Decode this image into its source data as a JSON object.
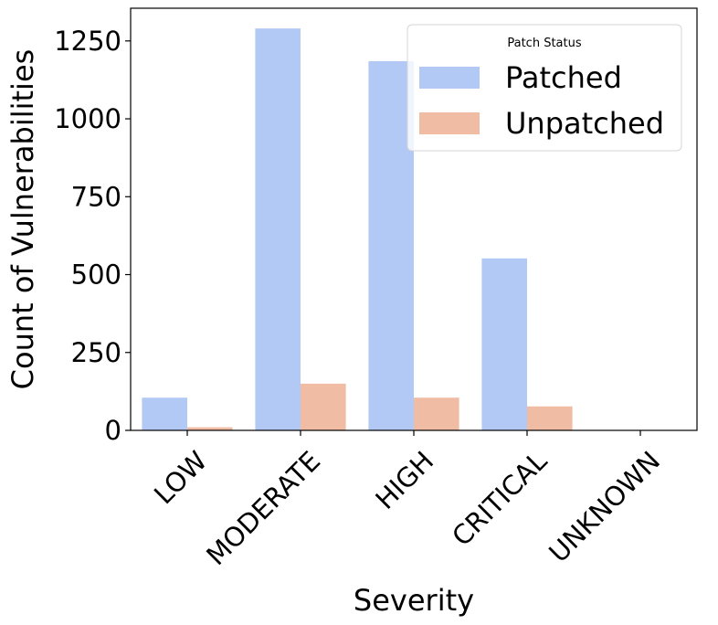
{
  "chart_data": {
    "type": "bar",
    "categories": [
      "LOW",
      "MODERATE",
      "HIGH",
      "CRITICAL",
      "UNKNOWN"
    ],
    "series": [
      {
        "name": "Patched",
        "color": "#b3c9f5",
        "values": [
          105,
          1290,
          1185,
          552,
          0
        ]
      },
      {
        "name": "Unpatched",
        "color": "#f0bca4",
        "values": [
          10,
          150,
          105,
          77,
          0
        ]
      }
    ],
    "title": "",
    "xlabel": "Severity",
    "ylabel": "Count of Vulnerabilities",
    "ylim": [
      0,
      1355
    ],
    "yticks": [
      0,
      250,
      500,
      750,
      1000,
      1250
    ],
    "legend": {
      "title": "Patch Status",
      "placement": "top-right"
    },
    "grid": false
  }
}
